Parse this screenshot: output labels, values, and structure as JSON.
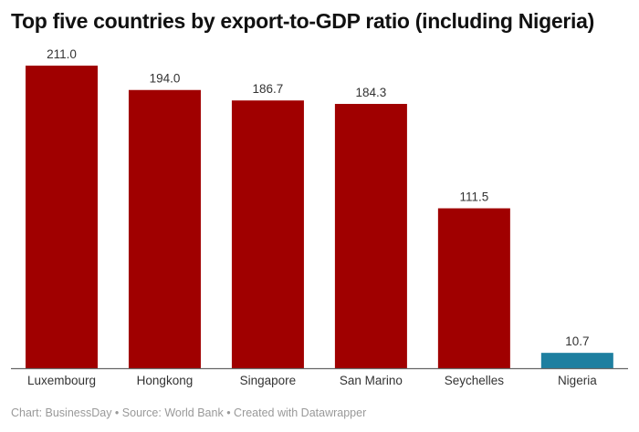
{
  "chart_data": {
    "type": "bar",
    "title": "Top five countries by export-to-GDP ratio (including Nigeria)",
    "categories": [
      "Luxembourg",
      "Hongkong",
      "Singapore",
      "San Marino",
      "Seychelles",
      "Nigeria"
    ],
    "values": [
      211.0,
      194.0,
      186.7,
      184.3,
      111.5,
      10.7
    ],
    "value_labels": [
      "211.0",
      "194.0",
      "186.7",
      "184.3",
      "111.5",
      "10.7"
    ],
    "colors": [
      "#a00000",
      "#a00000",
      "#a00000",
      "#a00000",
      "#a00000",
      "#1e7fa0"
    ],
    "ylim": [
      0,
      211
    ],
    "grid": false,
    "xlabel": "",
    "ylabel": ""
  },
  "footer": "Chart: BusinessDay • Source: World Bank • Created with Datawrapper"
}
